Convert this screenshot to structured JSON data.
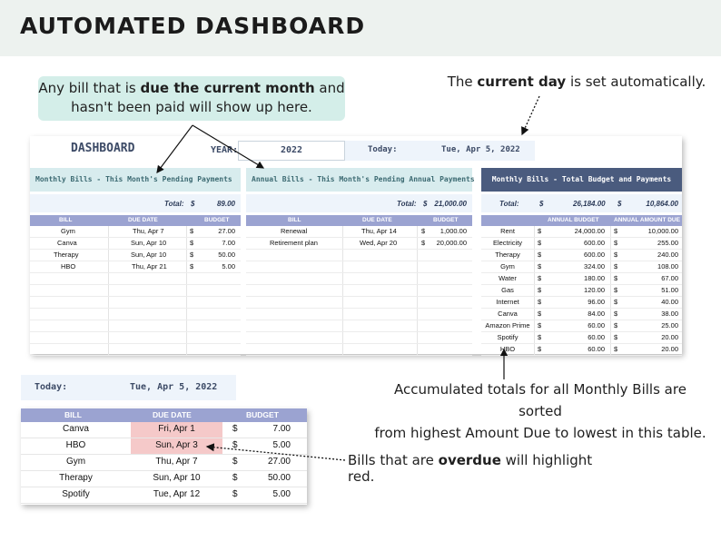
{
  "banner": {
    "title": "AUTOMATED DASHBOARD"
  },
  "callouts": {
    "pending_pre": "Any bill that is ",
    "pending_bold": "due the current month",
    "pending_post": " and",
    "pending_line2": "hasn't been paid will show up here.",
    "day_pre": "The ",
    "day_bold": "current day",
    "day_post": " is set automatically.",
    "totals_line1": "Accumulated totals for all Monthly Bills are sorted",
    "totals_line2": "from highest Amount Due to lowest in this table.",
    "overdue_pre": "Bills that are ",
    "overdue_bold": "overdue",
    "overdue_post": " will highlight red."
  },
  "dashboard": {
    "title": "DASHBOARD",
    "year_label": "YEAR:",
    "year_value": "2022",
    "today_label": "Today:",
    "today_value": "Tue, Apr 5, 2022"
  },
  "monthly_pending": {
    "title": "Monthly Bills - This Month's Pending Payments",
    "total_label": "Total:",
    "currency": "$",
    "total_value": "89.00",
    "columns": [
      "BILL",
      "DUE DATE",
      "BUDGET"
    ],
    "rows": [
      {
        "bill": "Gym",
        "due": "Thu, Apr 7",
        "amount": "27.00"
      },
      {
        "bill": "Canva",
        "due": "Sun, Apr 10",
        "amount": "7.00"
      },
      {
        "bill": "Therapy",
        "due": "Sun, Apr 10",
        "amount": "50.00"
      },
      {
        "bill": "HBO",
        "due": "Thu, Apr 21",
        "amount": "5.00"
      }
    ]
  },
  "annual_pending": {
    "title": "Annual Bills - This Month's Pending Annual Payments",
    "total_label": "Total:",
    "currency": "$",
    "total_value": "21,000.00",
    "columns": [
      "BILL",
      "DUE DATE",
      "BUDGET"
    ],
    "rows": [
      {
        "bill": "Renewal",
        "due": "Thu, Apr 14",
        "amount": "1,000.00"
      },
      {
        "bill": "Retirement plan",
        "due": "Wed, Apr 20",
        "amount": "20,000.00"
      }
    ]
  },
  "totals": {
    "title": "Monthly Bills - Total Budget and Payments",
    "total_label": "Total:",
    "currency": "$",
    "total_budget": "26,184.00",
    "total_due": "10,864.00",
    "columns": [
      "ANNUAL BUDGET",
      "ANNUAL AMOUNT DUE"
    ],
    "rows": [
      {
        "bill": "Rent",
        "budget": "24,000.00",
        "due": "10,000.00"
      },
      {
        "bill": "Electricity",
        "budget": "600.00",
        "due": "255.00"
      },
      {
        "bill": "Therapy",
        "budget": "600.00",
        "due": "240.00"
      },
      {
        "bill": "Gym",
        "budget": "324.00",
        "due": "108.00"
      },
      {
        "bill": "Water",
        "budget": "180.00",
        "due": "67.00"
      },
      {
        "bill": "Gas",
        "budget": "120.00",
        "due": "51.00"
      },
      {
        "bill": "Internet",
        "budget": "96.00",
        "due": "40.00"
      },
      {
        "bill": "Canva",
        "budget": "84.00",
        "due": "38.00"
      },
      {
        "bill": "Amazon Prime",
        "budget": "60.00",
        "due": "25.00"
      },
      {
        "bill": "Spotify",
        "budget": "60.00",
        "due": "20.00"
      },
      {
        "bill": "HBO",
        "budget": "60.00",
        "due": "20.00"
      }
    ]
  },
  "mini": {
    "today_label": "Today:",
    "today_value": "Tue, Apr 5, 2022",
    "currency": "$",
    "columns": [
      "BILL",
      "DUE DATE",
      "BUDGET"
    ],
    "overdue_color": "#f5c9c9",
    "rows": [
      {
        "bill": "Canva",
        "due": "Fri, Apr 1",
        "amount": "7.00",
        "overdue": true
      },
      {
        "bill": "HBO",
        "due": "Sun, Apr 3",
        "amount": "5.00",
        "overdue": true
      },
      {
        "bill": "Gym",
        "due": "Thu, Apr 7",
        "amount": "27.00",
        "overdue": false
      },
      {
        "bill": "Therapy",
        "due": "Sun, Apr 10",
        "amount": "50.00",
        "overdue": false
      },
      {
        "bill": "Spotify",
        "due": "Tue, Apr 12",
        "amount": "5.00",
        "overdue": false
      }
    ]
  }
}
